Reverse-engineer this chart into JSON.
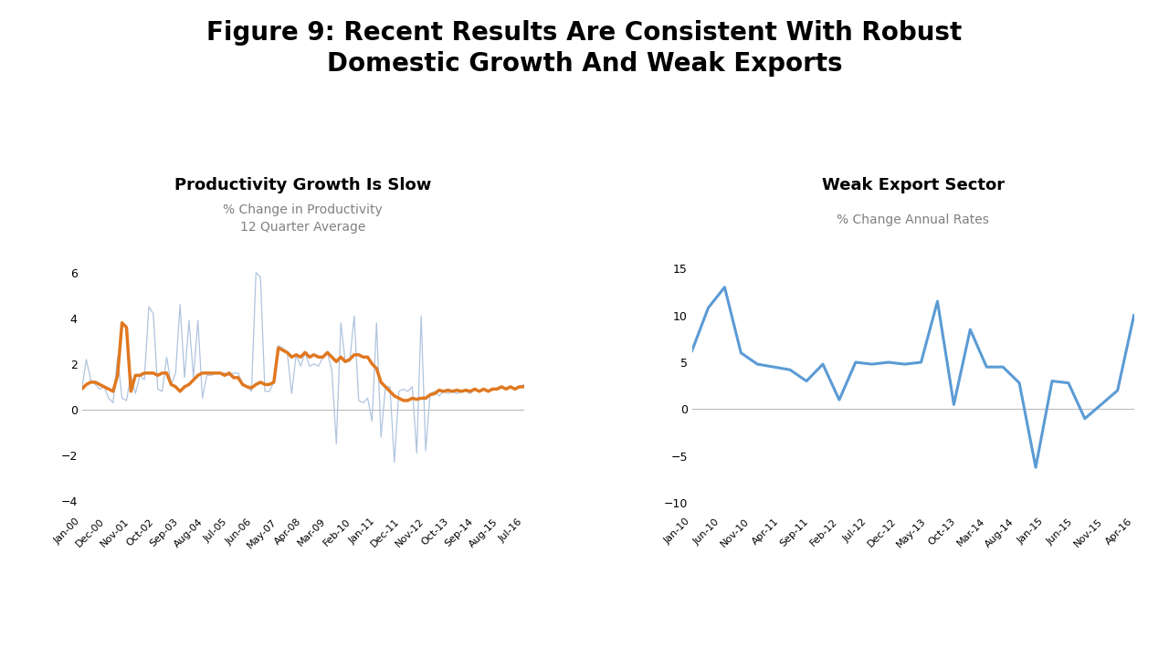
{
  "title": "Figure 9: Recent Results Are Consistent With Robust\nDomestic Growth And Weak Exports",
  "title_fontsize": 20,
  "title_fontweight": "bold",
  "background_color": "#ffffff",
  "left_chart": {
    "title": "Productivity Growth Is Slow",
    "title_fontsize": 13,
    "title_fontweight": "bold",
    "subtitle": "% Change in Productivity\n12 Quarter Average",
    "subtitle_fontsize": 10,
    "subtitle_color": "#808080",
    "ylim": [
      -4.5,
      7
    ],
    "yticks": [
      -4,
      -2,
      0,
      2,
      4,
      6
    ],
    "x_labels": [
      "Jan-00",
      "Dec-00",
      "Nov-01",
      "Oct-02",
      "Sep-03",
      "Aug-04",
      "Jul-05",
      "Jun-06",
      "May-07",
      "Apr-08",
      "Mar-09",
      "Feb-10",
      "Jan-11",
      "Dec-11",
      "Nov-12",
      "Oct-13",
      "Sep-14",
      "Aug-15",
      "Jul-16"
    ],
    "line_color": "#b0c4de",
    "avg_color": "#e07820",
    "raw_y": [
      0.9,
      2.2,
      1.3,
      1.1,
      0.9,
      1.0,
      0.5,
      0.3,
      2.3,
      0.5,
      0.4,
      1.5,
      0.7,
      1.5,
      1.3,
      4.5,
      4.2,
      0.9,
      0.8,
      2.3,
      1.1,
      1.6,
      4.6,
      1.4,
      3.9,
      1.4,
      3.9,
      0.5,
      1.5,
      1.5,
      1.6,
      1.6,
      1.6,
      1.5,
      1.6,
      1.6,
      1.1,
      1.0,
      0.8,
      6.0,
      5.8,
      0.8,
      0.8,
      1.2,
      2.8,
      2.7,
      2.5,
      0.7,
      2.4,
      1.9,
      2.5,
      1.9,
      2.0,
      1.9,
      2.3,
      2.5,
      1.7,
      -1.5,
      3.8,
      2.1,
      2.1,
      4.1,
      0.4,
      0.3,
      0.5,
      -0.5,
      3.8,
      -1.2,
      1.0,
      1.0,
      -2.3,
      0.8,
      0.9,
      0.8,
      1.0,
      -1.9,
      4.1,
      -1.8,
      0.7,
      0.8,
      0.6,
      0.8,
      0.7,
      0.8,
      0.7,
      0.8,
      0.8,
      0.7,
      0.9,
      0.8,
      0.9,
      0.8,
      0.9,
      0.9,
      1.0,
      0.9,
      1.0,
      0.9,
      1.0,
      1.1
    ],
    "avg_y": [
      0.9,
      1.1,
      1.2,
      1.2,
      1.1,
      1.0,
      0.9,
      0.8,
      1.5,
      3.8,
      3.6,
      0.8,
      1.5,
      1.5,
      1.6,
      1.6,
      1.6,
      1.5,
      1.6,
      1.6,
      1.1,
      1.0,
      0.8,
      1.0,
      1.1,
      1.3,
      1.5,
      1.6,
      1.6,
      1.6,
      1.6,
      1.6,
      1.5,
      1.6,
      1.4,
      1.4,
      1.1,
      1.0,
      0.95,
      1.1,
      1.2,
      1.1,
      1.1,
      1.2,
      2.7,
      2.6,
      2.5,
      2.3,
      2.4,
      2.3,
      2.5,
      2.3,
      2.4,
      2.3,
      2.3,
      2.5,
      2.3,
      2.1,
      2.3,
      2.1,
      2.2,
      2.4,
      2.4,
      2.3,
      2.3,
      2.0,
      1.8,
      1.2,
      1.0,
      0.8,
      0.6,
      0.5,
      0.4,
      0.4,
      0.5,
      0.45,
      0.5,
      0.5,
      0.65,
      0.7,
      0.85,
      0.8,
      0.85,
      0.8,
      0.85,
      0.8,
      0.85,
      0.8,
      0.9,
      0.8,
      0.9,
      0.8,
      0.9,
      0.9,
      1.0,
      0.9,
      1.0,
      0.9,
      1.0,
      1.0
    ]
  },
  "right_chart": {
    "title": "Weak Export Sector",
    "title_fontsize": 13,
    "title_fontweight": "bold",
    "subtitle": "% Change Annual Rates",
    "subtitle_fontsize": 10,
    "subtitle_color": "#808080",
    "ylim": [
      -11,
      17
    ],
    "yticks": [
      -10,
      -5,
      0,
      5,
      10,
      15
    ],
    "x_labels": [
      "Jan-10",
      "Jun-10",
      "Nov-10",
      "Apr-11",
      "Sep-11",
      "Feb-12",
      "Jul-12",
      "Dec-12",
      "May-13",
      "Oct-13",
      "Mar-14",
      "Aug-14",
      "Jan-15",
      "Jun-15",
      "Nov-15",
      "Apr-16"
    ],
    "line_color": "#5b9bd5",
    "y_values": [
      6.2,
      10.8,
      13.0,
      6.0,
      4.8,
      4.5,
      4.2,
      3.0,
      4.8,
      1.0,
      5.0,
      4.8,
      5.0,
      4.8,
      5.0,
      11.5,
      0.5,
      8.5,
      4.5,
      4.5,
      2.8,
      -6.2,
      3.0,
      2.8,
      -1.0,
      0.5,
      2.0,
      10.0
    ]
  }
}
